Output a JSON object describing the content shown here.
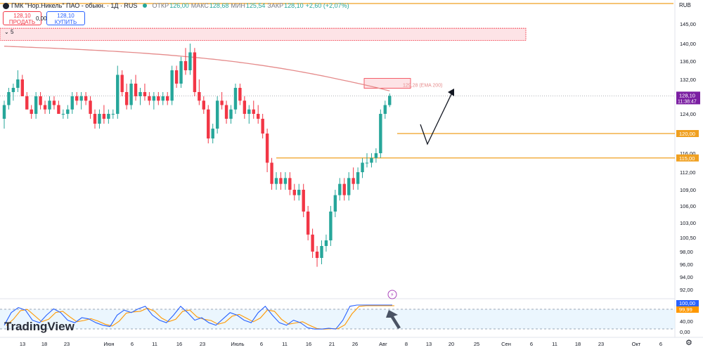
{
  "header": {
    "title": "ГМК \"Нор.Никель\" ПАО - обыкн. · 1Д · RUS",
    "open_label": "ОТКР",
    "open": "126,00",
    "high_label": "МАКС",
    "high": "128,68",
    "low_label": "МИН",
    "low": "125,54",
    "close_label": "ЗАКР",
    "close": "128,10",
    "change": "+2,60 (+2,07%)"
  },
  "trade": {
    "sell_price": "128,10",
    "sell_label": "ПРОДАТЬ",
    "spread": "0,00",
    "buy_price": "128,10",
    "buy_label": "КУПИТЬ"
  },
  "indicators_toggle": "5",
  "watermark": "TradingView",
  "currency": "RUB",
  "colors": {
    "up": "#26a69a",
    "down": "#f23645",
    "ema": "#e58b8b",
    "level": "#f0a020",
    "stoch_k": "#2962ff",
    "stoch_d": "#ff9800",
    "price_tag": "#7b1fa2"
  },
  "chart_data": {
    "type": "candlestick",
    "ylim": [
      90.2,
      148.5
    ],
    "y_ticks": [
      "145,00",
      "140,00",
      "136,00",
      "132,00",
      "128,00",
      "124,00",
      "120,00",
      "116,00",
      "112,00",
      "109,00",
      "106,00",
      "103,00",
      "100,50",
      "98,00",
      "96,00",
      "94,00",
      "92,00"
    ],
    "x_ticks": [
      "13",
      "18",
      "23",
      "Июн",
      "6",
      "11",
      "16",
      "23",
      "Июль",
      "6",
      "11",
      "16",
      "21",
      "26",
      "Авг",
      "8",
      "13",
      "20",
      "25",
      "Сен",
      "6",
      "11",
      "18",
      "23",
      "Окт",
      "6"
    ],
    "candles": [
      [
        123,
        127,
        121,
        126
      ],
      [
        126,
        130,
        125,
        129
      ],
      [
        129,
        131,
        127,
        130
      ],
      [
        130,
        134,
        129,
        132
      ],
      [
        132,
        133,
        128,
        128
      ],
      [
        128,
        129,
        125,
        125
      ],
      [
        125,
        126,
        123,
        124
      ],
      [
        124,
        129,
        123,
        128
      ],
      [
        128,
        129,
        125,
        126
      ],
      [
        126,
        127,
        124,
        125
      ],
      [
        125,
        128,
        124,
        127
      ],
      [
        127,
        128,
        125,
        126
      ],
      [
        126,
        127,
        124,
        124
      ],
      [
        124,
        125,
        123,
        124
      ],
      [
        124,
        126,
        123,
        125
      ],
      [
        125,
        129,
        124,
        128
      ],
      [
        128,
        129,
        126,
        127
      ],
      [
        127,
        129,
        125,
        128
      ],
      [
        128,
        129,
        126,
        127
      ],
      [
        127,
        128,
        123,
        124
      ],
      [
        124,
        125,
        121,
        122
      ],
      [
        122,
        125,
        121,
        124
      ],
      [
        124,
        126,
        122,
        123
      ],
      [
        123,
        125,
        122,
        124
      ],
      [
        124,
        125,
        123,
        124
      ],
      [
        124,
        135,
        123,
        133
      ],
      [
        133,
        134,
        128,
        129
      ],
      [
        129,
        131,
        125,
        126
      ],
      [
        126,
        132,
        125,
        131
      ],
      [
        131,
        133,
        127,
        128
      ],
      [
        128,
        130,
        126,
        129
      ],
      [
        129,
        131,
        127,
        128
      ],
      [
        128,
        129,
        126,
        127
      ],
      [
        127,
        129,
        125,
        128
      ],
      [
        128,
        129,
        126,
        127
      ],
      [
        127,
        129,
        126,
        128
      ],
      [
        128,
        129,
        126,
        127
      ],
      [
        127,
        135,
        126,
        134
      ],
      [
        134,
        135,
        130,
        131
      ],
      [
        131,
        137,
        130,
        136
      ],
      [
        136,
        139,
        133,
        134
      ],
      [
        134,
        140,
        133,
        138
      ],
      [
        138,
        139,
        128,
        129
      ],
      [
        129,
        132,
        126,
        127
      ],
      [
        127,
        128,
        124,
        125
      ],
      [
        125,
        126,
        118,
        119
      ],
      [
        119,
        122,
        118,
        121
      ],
      [
        121,
        128,
        120,
        127
      ],
      [
        127,
        129,
        125,
        126
      ],
      [
        126,
        127,
        122,
        123
      ],
      [
        123,
        126,
        122,
        125
      ],
      [
        125,
        131,
        124,
        130
      ],
      [
        130,
        131,
        126,
        127
      ],
      [
        127,
        128,
        123,
        124
      ],
      [
        124,
        126,
        122,
        125
      ],
      [
        125,
        127,
        123,
        124
      ],
      [
        124,
        126,
        122,
        123
      ],
      [
        123,
        124,
        119,
        120
      ],
      [
        120,
        121,
        112,
        114
      ],
      [
        114,
        115,
        109,
        110
      ],
      [
        110,
        112,
        109,
        111
      ],
      [
        111,
        112,
        109,
        110
      ],
      [
        110,
        112,
        109,
        111
      ],
      [
        111,
        112,
        108,
        109
      ],
      [
        109,
        110,
        107,
        108
      ],
      [
        108,
        110,
        107,
        109
      ],
      [
        109,
        110,
        104,
        105
      ],
      [
        105,
        106,
        100,
        101
      ],
      [
        101,
        102,
        97,
        98
      ],
      [
        98,
        99,
        95.6,
        97
      ],
      [
        97,
        100,
        96,
        99
      ],
      [
        99,
        101,
        98,
        100
      ],
      [
        100,
        106,
        99,
        105
      ],
      [
        105,
        109,
        104,
        108
      ],
      [
        108,
        111,
        107,
        110
      ],
      [
        110,
        111,
        107,
        108
      ],
      [
        108,
        112,
        107,
        111
      ],
      [
        111,
        113,
        109,
        110
      ],
      [
        110,
        113,
        109,
        112
      ],
      [
        112,
        115,
        111,
        114
      ],
      [
        114,
        116,
        113,
        114
      ],
      [
        114,
        116,
        113,
        115
      ],
      [
        115,
        117,
        114,
        116
      ],
      [
        116,
        125,
        115,
        124
      ],
      [
        124,
        127,
        123,
        126
      ],
      [
        126,
        128.68,
        125.54,
        128.1
      ]
    ],
    "ema200": {
      "label": "129,28 (EMA 200)",
      "start": 139.4,
      "end": 129.28
    },
    "levels": [
      {
        "value": 120,
        "label": "120,00"
      },
      {
        "value": 115,
        "label": "115,00"
      },
      {
        "value": 148.5,
        "label": ""
      }
    ],
    "resistance_zone": [
      141,
      143
    ],
    "target_box": [
      129.9,
      131.9
    ],
    "last_price": {
      "value": 128.1,
      "label": "128,10",
      "time": "11:38:47"
    },
    "stochastic": {
      "labels": [
        "100,00",
        "99,99"
      ],
      "ticks": [
        "40,00",
        "0,00"
      ]
    }
  }
}
